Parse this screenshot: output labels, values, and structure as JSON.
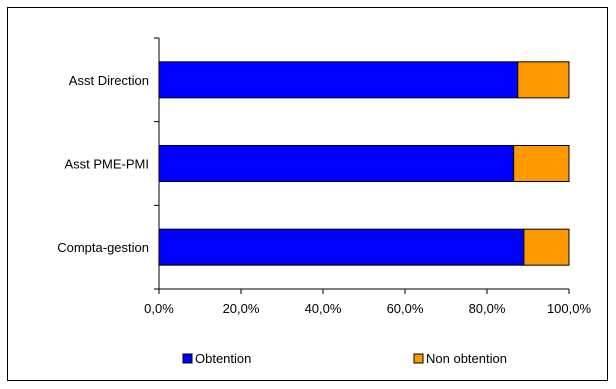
{
  "chart_data": {
    "type": "bar",
    "orientation": "horizontal",
    "stacked": "percent",
    "categories": [
      "Asst Direction",
      "Asst PME-PMI",
      "Compta-gestion"
    ],
    "series": [
      {
        "name": "Obtention",
        "values": [
          87.5,
          86.5,
          89.0
        ],
        "color": "#0000FF"
      },
      {
        "name": "Non obtention",
        "values": [
          12.5,
          13.5,
          11.0
        ],
        "color": "#FF9900"
      }
    ],
    "xlim": [
      0,
      100
    ],
    "x_ticks": [
      "0,0%",
      "20,0%",
      "40,0%",
      "60,0%",
      "80,0%",
      "100,0%"
    ],
    "grid": false,
    "legend_position": "bottom"
  }
}
